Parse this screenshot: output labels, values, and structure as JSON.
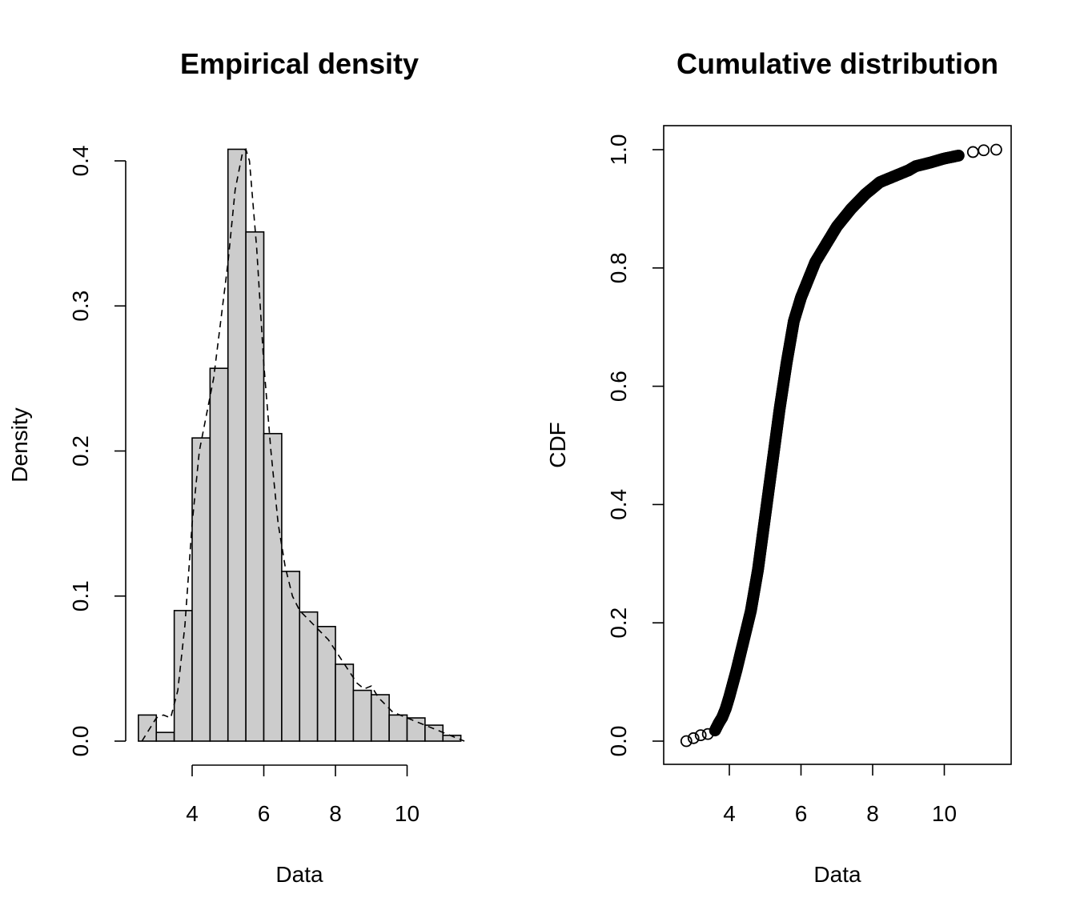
{
  "chart_data": [
    {
      "type": "bar",
      "subtype": "histogram",
      "title": "Empirical density",
      "xlabel": "Data",
      "ylabel": "Density",
      "xlim": [
        2.5,
        11.5
      ],
      "ylim": [
        0,
        0.4
      ],
      "x_ticks": [
        4,
        6,
        8,
        10
      ],
      "x_tick_labels": [
        "4",
        "6",
        "8",
        "10"
      ],
      "y_ticks": [
        0.0,
        0.1,
        0.2,
        0.3,
        0.4
      ],
      "y_tick_labels": [
        "0.0",
        "0.1",
        "0.2",
        "0.3",
        "0.4"
      ],
      "bin_width": 0.5,
      "bins": [
        {
          "start": 2.5,
          "end": 3.0,
          "density": 0.018
        },
        {
          "start": 3.0,
          "end": 3.5,
          "density": 0.006
        },
        {
          "start": 3.5,
          "end": 4.0,
          "density": 0.09
        },
        {
          "start": 4.0,
          "end": 4.5,
          "density": 0.209
        },
        {
          "start": 4.5,
          "end": 5.0,
          "density": 0.257
        },
        {
          "start": 5.0,
          "end": 5.5,
          "density": 0.408
        },
        {
          "start": 5.5,
          "end": 6.0,
          "density": 0.351
        },
        {
          "start": 6.0,
          "end": 6.5,
          "density": 0.212
        },
        {
          "start": 6.5,
          "end": 7.0,
          "density": 0.117
        },
        {
          "start": 7.0,
          "end": 7.5,
          "density": 0.089
        },
        {
          "start": 7.5,
          "end": 8.0,
          "density": 0.079
        },
        {
          "start": 8.0,
          "end": 8.5,
          "density": 0.053
        },
        {
          "start": 8.5,
          "end": 9.0,
          "density": 0.035
        },
        {
          "start": 9.0,
          "end": 9.5,
          "density": 0.032
        },
        {
          "start": 9.5,
          "end": 10.0,
          "density": 0.018
        },
        {
          "start": 10.0,
          "end": 10.5,
          "density": 0.016
        },
        {
          "start": 10.5,
          "end": 11.0,
          "density": 0.011
        },
        {
          "start": 11.0,
          "end": 11.5,
          "density": 0.004
        }
      ],
      "density_curve": {
        "x": [
          2.6,
          2.8,
          3.0,
          3.2,
          3.4,
          3.6,
          3.8,
          4.0,
          4.2,
          4.4,
          4.6,
          4.8,
          5.0,
          5.2,
          5.4,
          5.5,
          5.6,
          5.8,
          6.0,
          6.2,
          6.4,
          6.6,
          6.8,
          7.0,
          7.4,
          7.8,
          8.2,
          8.6,
          8.8,
          9.0,
          9.2,
          9.6,
          10.0,
          10.4,
          10.8,
          11.2,
          11.6
        ],
        "y": [
          0.0,
          0.008,
          0.016,
          0.018,
          0.016,
          0.035,
          0.08,
          0.15,
          0.2,
          0.225,
          0.25,
          0.29,
          0.33,
          0.38,
          0.405,
          0.408,
          0.4,
          0.34,
          0.26,
          0.2,
          0.15,
          0.12,
          0.1,
          0.09,
          0.08,
          0.07,
          0.055,
          0.04,
          0.036,
          0.038,
          0.03,
          0.02,
          0.016,
          0.012,
          0.008,
          0.004,
          0.0
        ],
        "line_style": "dashed"
      },
      "bar_fill": "#cccccc",
      "bar_stroke": "#000000"
    },
    {
      "type": "scatter",
      "title": "Cumulative distribution",
      "xlabel": "Data",
      "ylabel": "CDF",
      "xlim": [
        2.5,
        11.8
      ],
      "ylim": [
        0,
        1
      ],
      "x_ticks": [
        4,
        6,
        8,
        10
      ],
      "x_tick_labels": [
        "4",
        "6",
        "8",
        "10"
      ],
      "y_ticks": [
        0.0,
        0.2,
        0.4,
        0.6,
        0.8,
        1.0
      ],
      "y_tick_labels": [
        "0.0",
        "0.2",
        "0.4",
        "0.6",
        "0.8",
        "1.0"
      ],
      "marker": "open-circle",
      "cdf_points": {
        "x": [
          2.8,
          3.0,
          3.2,
          3.4,
          3.6,
          3.7,
          3.8,
          3.9,
          4.0,
          4.2,
          4.4,
          4.6,
          4.8,
          5.0,
          5.2,
          5.4,
          5.6,
          5.8,
          6.0,
          6.2,
          6.4,
          6.6,
          6.8,
          7.0,
          7.4,
          7.8,
          8.2,
          8.6,
          9.0,
          9.2,
          9.6,
          10.0,
          10.4,
          10.8,
          11.1,
          11.45
        ],
        "y": [
          0.0,
          0.005,
          0.01,
          0.012,
          0.018,
          0.03,
          0.04,
          0.055,
          0.075,
          0.12,
          0.17,
          0.22,
          0.29,
          0.38,
          0.47,
          0.56,
          0.64,
          0.71,
          0.75,
          0.78,
          0.81,
          0.83,
          0.85,
          0.87,
          0.9,
          0.925,
          0.945,
          0.955,
          0.965,
          0.972,
          0.978,
          0.985,
          0.99,
          0.996,
          0.999,
          1.0
        ]
      }
    }
  ]
}
